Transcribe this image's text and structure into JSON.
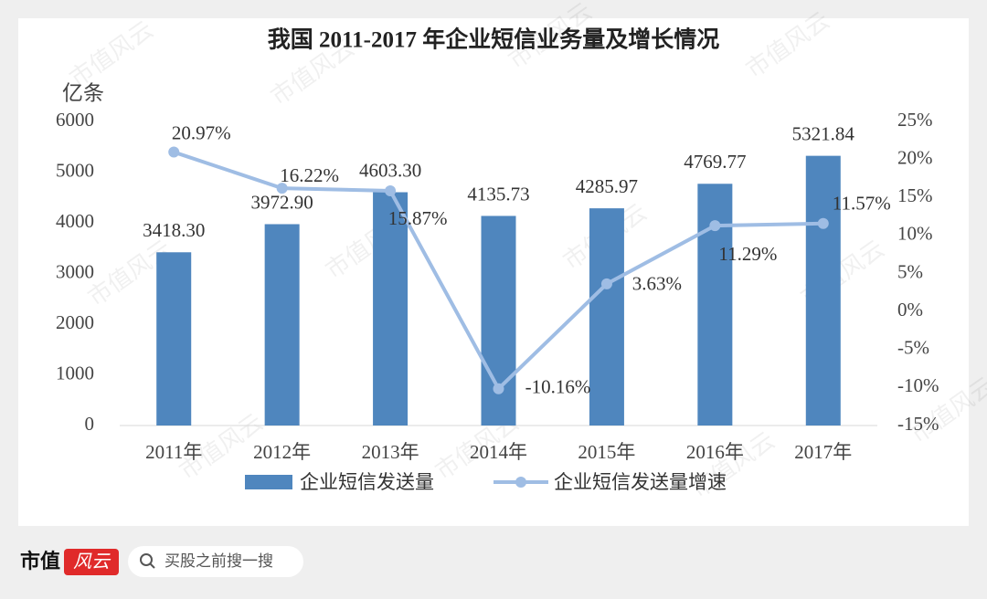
{
  "chart_data": {
    "type": "bar",
    "title": "我国 2011-2017 年企业短信业务量及增长情况",
    "y_label": "亿条",
    "categories": [
      "2011年",
      "2012年",
      "2013年",
      "2014年",
      "2015年",
      "2016年",
      "2017年"
    ],
    "series": [
      {
        "name": "企业短信发送量",
        "type": "bar",
        "color": "#4f86be",
        "axis": "y",
        "values": [
          3418.3,
          3972.9,
          4603.3,
          4135.73,
          4285.97,
          4769.77,
          5321.84
        ],
        "value_labels": [
          "3418.30",
          "3972.90",
          "4603.30",
          "4135.73",
          "4285.97",
          "4769.77",
          "5321.84"
        ]
      },
      {
        "name": "企业短信发送量增速",
        "type": "line",
        "color": "#9fbde4",
        "axis": "y2",
        "values": [
          20.97,
          16.22,
          15.87,
          -10.16,
          3.63,
          11.29,
          11.57
        ],
        "value_labels": [
          "20.97%",
          "16.22%",
          "15.87%",
          "-10.16%",
          "3.63%",
          "11.29%",
          "11.57%"
        ]
      }
    ],
    "ylim": [
      0,
      6000
    ],
    "yticks": [
      0,
      1000,
      2000,
      3000,
      4000,
      5000,
      6000
    ],
    "y2lim": [
      -15,
      25
    ],
    "y2ticks": [
      {
        "value": -15,
        "label": "-15%"
      },
      {
        "value": -10,
        "label": "-10%"
      },
      {
        "value": -5,
        "label": "-5%"
      },
      {
        "value": 0,
        "label": "0%"
      },
      {
        "value": 5,
        "label": "5%"
      },
      {
        "value": 10,
        "label": "10%"
      },
      {
        "value": 15,
        "label": "15%"
      },
      {
        "value": 20,
        "label": "20%"
      },
      {
        "value": 25,
        "label": "25%"
      }
    ],
    "legend": "bottom"
  },
  "watermark": "市值风云",
  "footer": {
    "brand": "市值",
    "logo": "风云",
    "search": "买股之前搜一搜"
  }
}
